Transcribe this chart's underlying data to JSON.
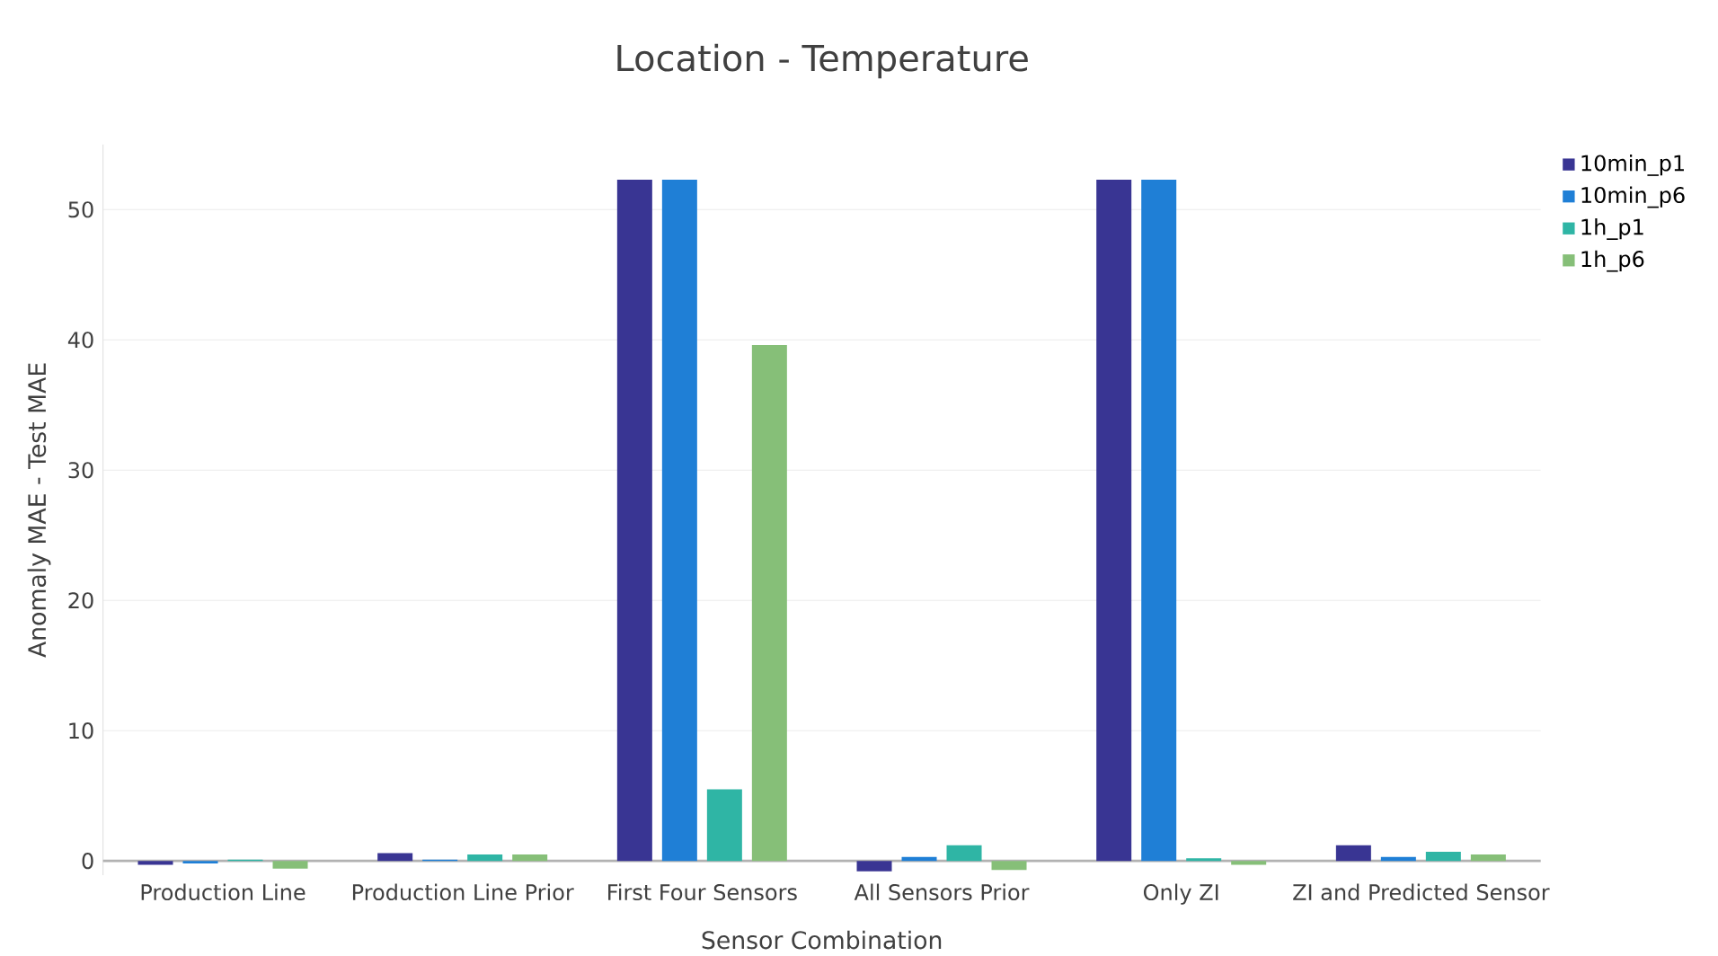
{
  "chart_data": {
    "type": "bar",
    "title": "Location - Temperature",
    "xlabel": "Sensor Combination",
    "ylabel": "Anomaly MAE - Test MAE",
    "categories": [
      "Production Line",
      "Production Line Prior",
      "First Four Sensors",
      "All Sensors Prior",
      "Only ZI",
      "ZI and Predicted Sensor"
    ],
    "series": [
      {
        "name": "10min_p1",
        "color": "#393593",
        "values": [
          -0.3,
          0.6,
          52.3,
          -0.8,
          52.3,
          1.2
        ]
      },
      {
        "name": "10min_p6",
        "color": "#1f7fd6",
        "values": [
          -0.2,
          0.1,
          52.3,
          0.3,
          52.3,
          0.3
        ]
      },
      {
        "name": "1h_p1",
        "color": "#2fb5a5",
        "values": [
          0.1,
          0.5,
          5.5,
          1.2,
          0.2,
          0.7
        ]
      },
      {
        "name": "1h_p6",
        "color": "#86bf78",
        "values": [
          -0.6,
          0.5,
          39.6,
          -0.7,
          -0.3,
          0.5
        ]
      }
    ],
    "ylim": [
      -1.1,
      55
    ],
    "yticks": [
      0,
      10,
      20,
      30,
      40,
      50
    ],
    "grid": "y",
    "legend": "top right"
  }
}
